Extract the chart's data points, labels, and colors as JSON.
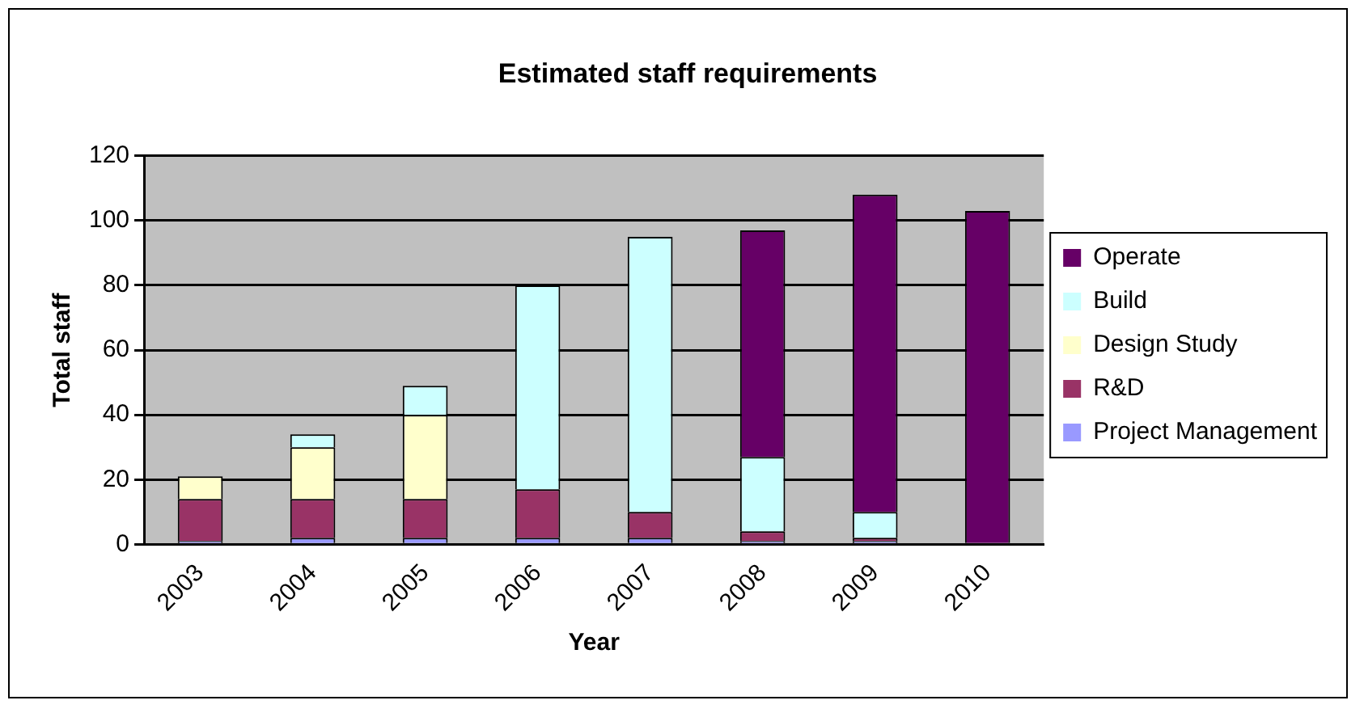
{
  "chart_data": {
    "type": "bar",
    "title": "Estimated staff requirements",
    "xlabel": "Year",
    "ylabel": "Total staff",
    "categories": [
      "2003",
      "2004",
      "2005",
      "2006",
      "2007",
      "2008",
      "2009",
      "2010"
    ],
    "stacked": true,
    "ylim": [
      0,
      120
    ],
    "yticks": [
      0,
      20,
      40,
      60,
      80,
      100,
      120
    ],
    "grid": "y",
    "legend": "right",
    "series": [
      {
        "name": "Project Management",
        "color": "#9999ff",
        "values": [
          1,
          2,
          2,
          2,
          2,
          1,
          1,
          0
        ]
      },
      {
        "name": "R&D",
        "color": "#993366",
        "values": [
          13,
          12,
          12,
          15,
          8,
          3,
          1,
          0
        ]
      },
      {
        "name": "Design Study",
        "color": "#ffffcc",
        "values": [
          7,
          16,
          26,
          0,
          0,
          0,
          0,
          0
        ]
      },
      {
        "name": "Build",
        "color": "#ccffff",
        "values": [
          0,
          4,
          9,
          63,
          85,
          23,
          8,
          0
        ]
      },
      {
        "name": "Operate",
        "color": "#660066",
        "values": [
          0,
          0,
          0,
          0,
          0,
          70,
          98,
          103
        ]
      }
    ]
  }
}
